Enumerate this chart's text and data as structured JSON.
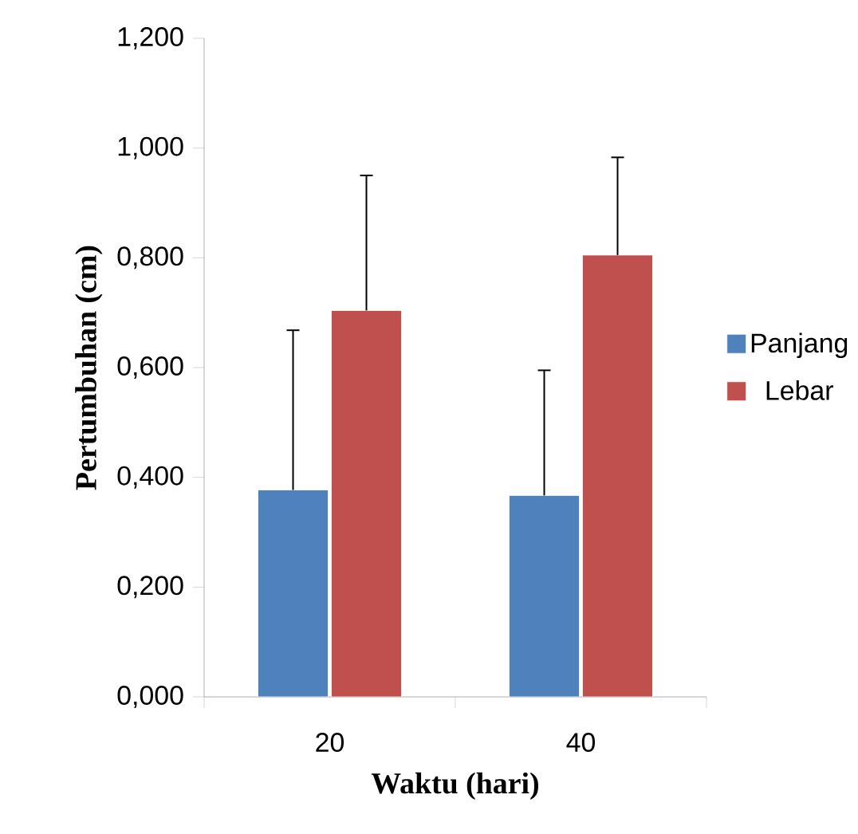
{
  "chart_data": {
    "type": "bar",
    "xlabel": "Waktu (hari)",
    "ylabel": "Pertumbuhan (cm)",
    "categories": [
      "20",
      "40"
    ],
    "series": [
      {
        "name": "Panjang",
        "color": "#4f81bd",
        "values": [
          0.377,
          0.367
        ],
        "errors": [
          [
            0.377,
            0.668
          ],
          [
            0.367,
            0.595
          ]
        ]
      },
      {
        "name": "Lebar",
        "color": "#c0504d",
        "values": [
          0.704,
          0.805
        ],
        "errors": [
          [
            0.704,
            0.95
          ],
          [
            0.805,
            0.983
          ]
        ]
      }
    ],
    "ylim": [
      0,
      1.2
    ],
    "yticks": [
      {
        "value": 0,
        "label": "0,000"
      },
      {
        "value": 0.2,
        "label": "0,200"
      },
      {
        "value": 0.4,
        "label": "0,400"
      },
      {
        "value": 0.6,
        "label": "0,600"
      },
      {
        "value": 0.8,
        "label": "0,800"
      },
      {
        "value": 1.0,
        "label": "1,000"
      },
      {
        "value": 1.2,
        "label": "1,200"
      }
    ],
    "legend": "right",
    "grid": false
  }
}
